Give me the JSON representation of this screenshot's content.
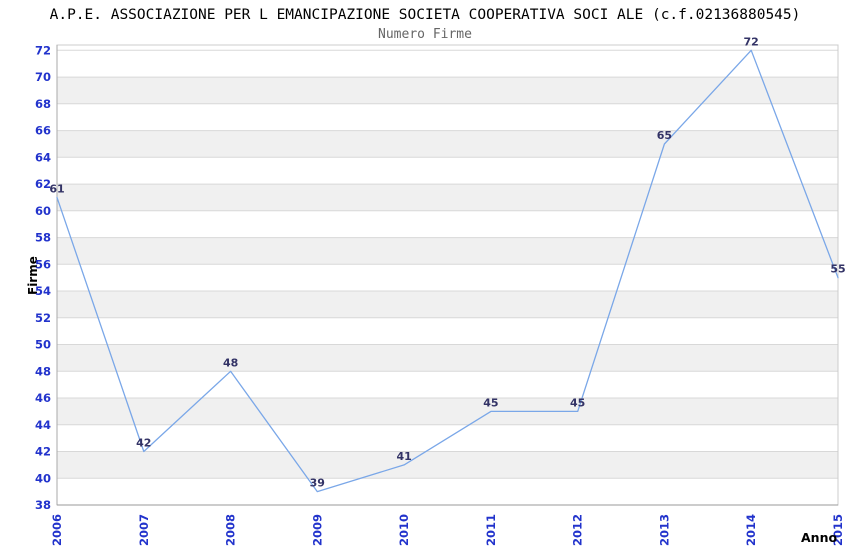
{
  "header": {
    "title": "A.P.E. ASSOCIAZIONE PER L EMANCIPAZIONE SOCIETA COOPERATIVA SOCI ALE (c.f.02136880545)",
    "subtitle": "Numero Firme"
  },
  "chart_data": {
    "type": "line",
    "title": "Numero Firme",
    "x": [
      "2006",
      "2007",
      "2008",
      "2009",
      "2010",
      "2011",
      "2012",
      "2013",
      "2014",
      "2015"
    ],
    "series": [
      {
        "name": "Numero Firme",
        "values": [
          61,
          42,
          48,
          39,
          41,
          45,
          45,
          65,
          72,
          55
        ]
      }
    ],
    "xlabel": "Anno",
    "ylabel": "Firme",
    "ylim": [
      38,
      72.4
    ],
    "yticks": [
      38,
      40,
      42,
      44,
      46,
      48,
      50,
      52,
      54,
      56,
      58,
      60,
      62,
      64,
      66,
      68,
      70,
      72
    ],
    "grid": "horizontal alternating bands every 2 units with light gridlines",
    "legend": "none",
    "data_labels": true,
    "x_tick_rotation": "vertical bottom-to-top"
  },
  "colors": {
    "line": "#7aa7e8",
    "tick_label": "#2233cc",
    "data_label": "#333366",
    "band_fill": "#f0f0f0",
    "gridline": "#d8d8d8",
    "plot_border": "#cccccc",
    "bottom_axis": "#999999",
    "left_axis": "#aaaaaa",
    "title_text": "#000000",
    "subtitle_text": "#666666",
    "background": "#ffffff"
  }
}
